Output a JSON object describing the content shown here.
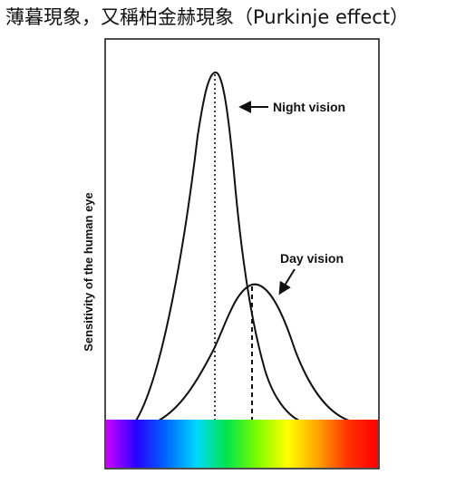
{
  "title": "薄暮現象，又稱柏金赫現象（Purkinje effect）",
  "figure": {
    "y_axis_label": "Sensitivity of the human eye",
    "curves": [
      {
        "label": "Night vision",
        "peak_marker": "dotted"
      },
      {
        "label": "Day vision",
        "peak_marker": "dashed"
      }
    ],
    "spectrum_colors": [
      "#d000ff",
      "#2a00ff",
      "#0066ff",
      "#00d8ff",
      "#00e64d",
      "#7cfc00",
      "#ffff00",
      "#ffa500",
      "#ff3300",
      "#ff0000"
    ],
    "line_color": "#111111"
  }
}
